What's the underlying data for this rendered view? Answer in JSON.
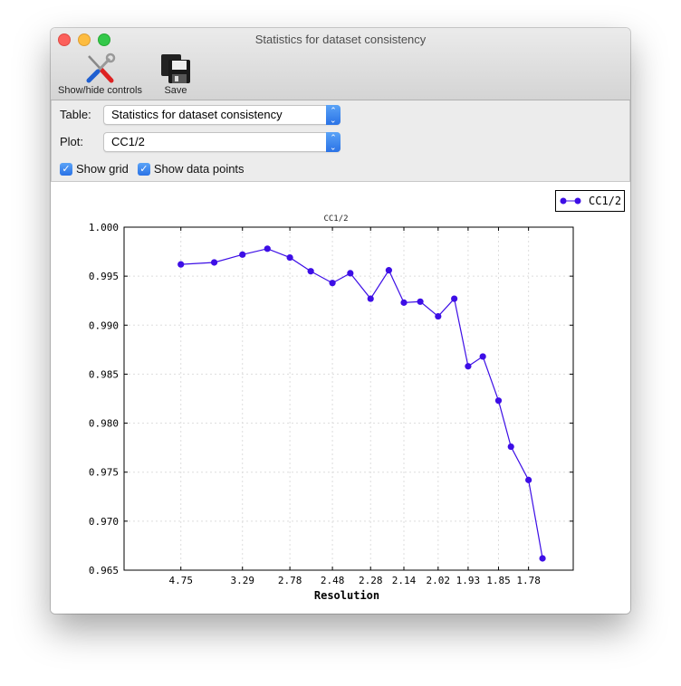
{
  "window": {
    "title": "Statistics for dataset consistency"
  },
  "toolbar": {
    "items": [
      {
        "label": "Show/hide controls",
        "icon": "tools-icon"
      },
      {
        "label": "Save",
        "icon": "floppy-disk-icon"
      }
    ]
  },
  "controls": {
    "table_label": "Table:",
    "table_value": "Statistics for dataset consistency",
    "plot_label": "Plot:",
    "plot_value": "CC1/2",
    "show_grid_label": "Show grid",
    "show_grid_checked": true,
    "show_points_label": "Show data points",
    "show_points_checked": true
  },
  "colors": {
    "series": "#3d0ee6",
    "accent": "#2a72e6"
  },
  "chart_data": {
    "type": "line",
    "title": "CC1/2",
    "xlabel": "Resolution",
    "ylabel": "",
    "x_axis_scale": "inverse-square (1/d^2), labelled in resolution",
    "x_ticks": [
      "4.75",
      "3.29",
      "2.78",
      "2.48",
      "2.28",
      "2.14",
      "2.02",
      "1.93",
      "1.85",
      "1.78"
    ],
    "ylim": [
      0.965,
      1.0
    ],
    "y_ticks": [
      "1.000",
      "0.995",
      "0.990",
      "0.985",
      "0.980",
      "0.975",
      "0.970",
      "0.965"
    ],
    "grid": true,
    "markers": true,
    "legend": "top-right",
    "series": [
      {
        "name": "CC1/2",
        "x": [
          4.75,
          3.77,
          3.29,
          2.99,
          2.78,
          2.62,
          2.48,
          2.38,
          2.28,
          2.2,
          2.14,
          2.08,
          2.02,
          1.97,
          1.93,
          1.89,
          1.85,
          1.82,
          1.78,
          1.75
        ],
        "values": [
          0.9962,
          0.9964,
          0.9972,
          0.9978,
          0.9969,
          0.9955,
          0.9943,
          0.9953,
          0.9927,
          0.9956,
          0.9923,
          0.9924,
          0.9909,
          0.9927,
          0.9858,
          0.9868,
          0.9823,
          0.9776,
          0.9742,
          0.9662
        ]
      }
    ]
  }
}
